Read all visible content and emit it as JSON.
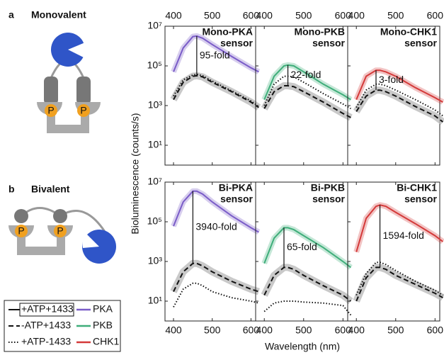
{
  "figure": {
    "label_a": "a",
    "name_a": "Monovalent",
    "label_b": "b",
    "name_b": "Bivalent",
    "phospho_label": "P",
    "ylabel": "Bioluminescence (counts/s)",
    "xlabel": "Wavelength (nm)"
  },
  "legend": {
    "styles": [
      {
        "name": "+ATP+1433",
        "dash": "solid"
      },
      {
        "name": "-ATP+1433",
        "dash": "dashed"
      },
      {
        "name": "+ATP-1433",
        "dash": "dotted"
      }
    ],
    "kinases": [
      {
        "name": "PKA",
        "color": "#7a5cc8"
      },
      {
        "name": "PKB",
        "color": "#3fae7a"
      },
      {
        "name": "CHK1",
        "color": "#d43a3a"
      }
    ]
  },
  "chart_data": [
    {
      "type": "line",
      "title": "Mono-PKA",
      "subtitle": "sensor",
      "annotation": "95-fold",
      "xaxis": "top",
      "ytick_labels": true,
      "log_y": true,
      "x": [
        400,
        425,
        450,
        460,
        475,
        500,
        550,
        600,
        620
      ],
      "xlim": [
        378,
        612
      ],
      "xticks": [
        400,
        500,
        600
      ],
      "ylim": [
        1,
        10000000
      ],
      "yticks": [
        {
          "value": 10,
          "label": "10¹"
        },
        {
          "value": 1000,
          "label": "10³"
        },
        {
          "value": 100000,
          "label": "10⁵"
        },
        {
          "value": 10000000,
          "label": "10⁷"
        }
      ],
      "series": [
        {
          "color": "#7a5cc8",
          "dash": "solid",
          "values": [
            50000,
            800000,
            3000000,
            3200000,
            2500000,
            1200000,
            300000,
            80000,
            50000
          ]
        },
        {
          "color": "#111111",
          "dash": "dashed",
          "values": [
            2000,
            15000,
            30000,
            32000,
            28000,
            15000,
            5000,
            1500,
            800
          ]
        },
        {
          "color": "#111111",
          "dash": "dotted",
          "values": [
            3000,
            20000,
            35000,
            38000,
            32000,
            17000,
            5500,
            1700,
            900
          ]
        }
      ]
    },
    {
      "type": "line",
      "title": "Mono-PKB",
      "subtitle": "sensor",
      "annotation": "22-fold",
      "xaxis": "top",
      "ytick_labels": false,
      "log_y": true,
      "x": [
        400,
        425,
        450,
        460,
        475,
        500,
        550,
        600,
        620
      ],
      "xlim": [
        378,
        612
      ],
      "xticks": [
        400,
        500,
        600
      ],
      "ylim": [
        1,
        10000000
      ],
      "yticks": [
        {
          "value": 10,
          "label": "10¹"
        },
        {
          "value": 1000,
          "label": "10³"
        },
        {
          "value": 100000,
          "label": "10⁵"
        },
        {
          "value": 10000000,
          "label": "10⁷"
        }
      ],
      "series": [
        {
          "color": "#3fae7a",
          "dash": "solid",
          "values": [
            2000,
            30000,
            100000,
            110000,
            100000,
            50000,
            12000,
            3500,
            2000
          ]
        },
        {
          "color": "#111111",
          "dash": "dashed",
          "values": [
            700,
            5000,
            10000,
            10000,
            9000,
            5000,
            1500,
            400,
            250
          ]
        },
        {
          "color": "#111111",
          "dash": "dotted",
          "values": [
            1000,
            12000,
            30000,
            30000,
            28000,
            15000,
            4000,
            1200,
            700
          ]
        }
      ]
    },
    {
      "type": "line",
      "title": "Mono-CHK1",
      "subtitle": "sensor",
      "annotation": "3-fold",
      "xaxis": "top",
      "ytick_labels": false,
      "log_y": true,
      "x": [
        400,
        425,
        450,
        460,
        475,
        500,
        550,
        600,
        620
      ],
      "xlim": [
        378,
        612
      ],
      "xticks": [
        400,
        500,
        600
      ],
      "ylim": [
        1,
        10000000
      ],
      "yticks": [
        {
          "value": 10,
          "label": "10¹"
        },
        {
          "value": 1000,
          "label": "10³"
        },
        {
          "value": 100000,
          "label": "10⁵"
        },
        {
          "value": 10000000,
          "label": "10⁷"
        }
      ],
      "series": [
        {
          "color": "#d43a3a",
          "dash": "solid",
          "values": [
            2000,
            30000,
            60000,
            60000,
            50000,
            30000,
            8000,
            2500,
            1500
          ]
        },
        {
          "color": "#111111",
          "dash": "dashed",
          "values": [
            500,
            3000,
            6000,
            6000,
            5000,
            3000,
            900,
            300,
            150
          ]
        },
        {
          "color": "#111111",
          "dash": "dotted",
          "values": [
            800,
            6000,
            12000,
            12000,
            10000,
            6000,
            2000,
            600,
            300
          ]
        }
      ]
    },
    {
      "type": "line",
      "title": "Bi-PKA",
      "subtitle": "sensor",
      "annotation": "3940-fold",
      "xaxis": "bottom",
      "ytick_labels": true,
      "log_y": true,
      "x": [
        400,
        425,
        450,
        460,
        475,
        500,
        550,
        600,
        620
      ],
      "xlim": [
        378,
        612
      ],
      "xticks": [
        400,
        500,
        600
      ],
      "ylim": [
        1,
        10000000
      ],
      "yticks": [
        {
          "value": 10,
          "label": "10¹"
        },
        {
          "value": 1000,
          "label": "10³"
        },
        {
          "value": 100000,
          "label": "10⁵"
        },
        {
          "value": 10000000,
          "label": "10⁷"
        }
      ],
      "series": [
        {
          "color": "#7a5cc8",
          "dash": "solid",
          "values": [
            60000,
            1000000,
            3500000,
            3500000,
            2500000,
            1000000,
            200000,
            50000,
            30000
          ]
        },
        {
          "color": "#111111",
          "dash": "dashed",
          "values": [
            30,
            300,
            800,
            800,
            600,
            300,
            100,
            40,
            30
          ]
        },
        {
          "color": "#111111",
          "dash": "dotted",
          "values": [
            5,
            40,
            80,
            80,
            60,
            30,
            15,
            10,
            8
          ]
        }
      ]
    },
    {
      "type": "line",
      "title": "Bi-PKB",
      "subtitle": "sensor",
      "annotation": "65-fold",
      "xaxis": "bottom",
      "ytick_labels": false,
      "log_y": true,
      "x": [
        400,
        425,
        450,
        460,
        475,
        500,
        550,
        600,
        620
      ],
      "xlim": [
        378,
        612
      ],
      "xticks": [
        400,
        500,
        600
      ],
      "ylim": [
        1,
        10000000
      ],
      "yticks": [
        {
          "value": 10,
          "label": "10¹"
        },
        {
          "value": 1000,
          "label": "10³"
        },
        {
          "value": 100000,
          "label": "10⁵"
        },
        {
          "value": 10000000,
          "label": "10⁷"
        }
      ],
      "series": [
        {
          "color": "#3fae7a",
          "dash": "solid",
          "values": [
            800,
            15000,
            50000,
            50000,
            40000,
            20000,
            5000,
            1000,
            500
          ]
        },
        {
          "color": "#111111",
          "dash": "dashed",
          "values": [
            20,
            200,
            500,
            500,
            400,
            200,
            60,
            20,
            10
          ]
        },
        {
          "color": "#111111",
          "dash": "dotted",
          "values": [
            3,
            8,
            10,
            10,
            10,
            9,
            8,
            6,
            2
          ]
        }
      ]
    },
    {
      "type": "line",
      "title": "Bi-CHK1",
      "subtitle": "sensor",
      "annotation": "1594-fold",
      "xaxis": "bottom",
      "ytick_labels": false,
      "log_y": true,
      "x": [
        400,
        425,
        450,
        460,
        475,
        500,
        550,
        600,
        620
      ],
      "xlim": [
        378,
        612
      ],
      "xticks": [
        400,
        500,
        600
      ],
      "ylim": [
        1,
        10000000
      ],
      "yticks": [
        {
          "value": 10,
          "label": "10¹"
        },
        {
          "value": 1000,
          "label": "10³"
        },
        {
          "value": 100000,
          "label": "10⁵"
        },
        {
          "value": 10000000,
          "label": "10⁷"
        }
      ],
      "series": [
        {
          "color": "#d43a3a",
          "dash": "solid",
          "values": [
            3000,
            150000,
            600000,
            700000,
            600000,
            300000,
            80000,
            20000,
            10000
          ]
        },
        {
          "color": "#111111",
          "dash": "dashed",
          "values": [
            10,
            150,
            500,
            500,
            400,
            200,
            70,
            25,
            15
          ]
        },
        {
          "color": "#111111",
          "dash": "dotted",
          "values": [
            20,
            250,
            900,
            900,
            700,
            350,
            100,
            35,
            20
          ]
        }
      ]
    }
  ]
}
